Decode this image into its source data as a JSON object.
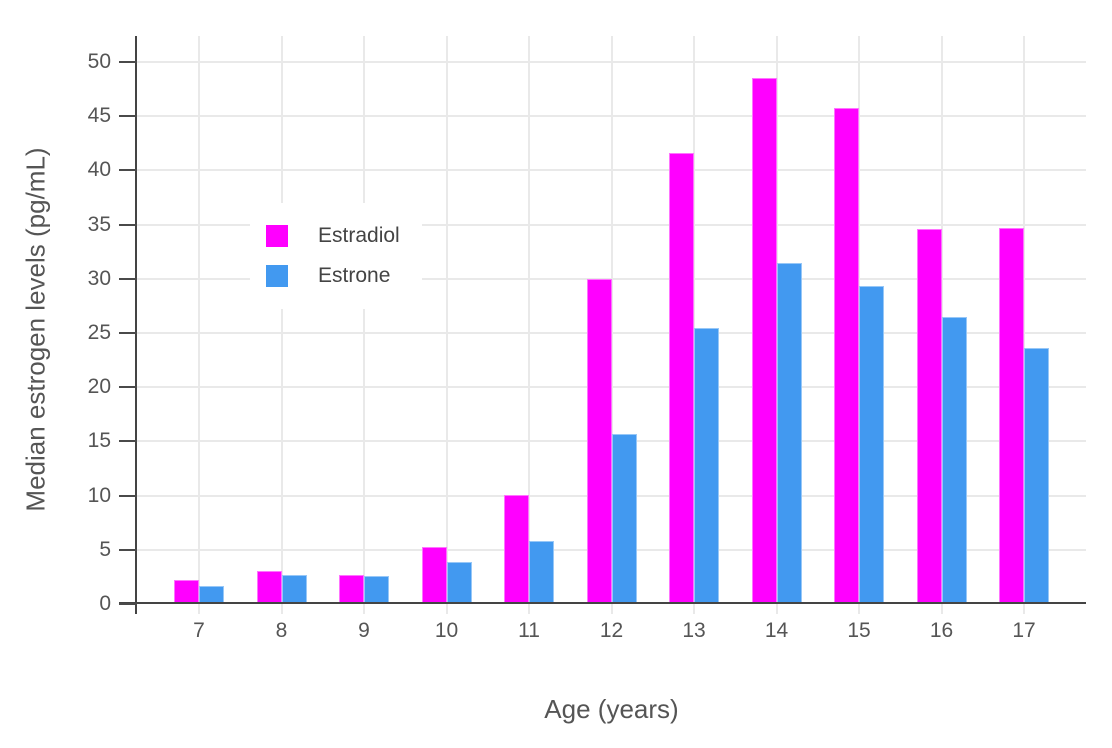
{
  "chart_data": {
    "type": "bar",
    "title": "",
    "xlabel": "Age (years)",
    "ylabel": "Median estrogen levels (pg/mL)",
    "categories": [
      "7",
      "8",
      "9",
      "10",
      "11",
      "12",
      "13",
      "14",
      "15",
      "16",
      "17"
    ],
    "series": [
      {
        "name": "Estradiol",
        "color": "#FF00FF",
        "values": [
          2.2,
          3.0,
          2.7,
          5.3,
          10.1,
          30.0,
          41.6,
          48.5,
          45.8,
          34.6,
          34.7
        ]
      },
      {
        "name": "Estrone",
        "color": "#4299F0",
        "values": [
          1.7,
          2.7,
          2.6,
          3.9,
          5.8,
          15.7,
          25.5,
          31.5,
          29.3,
          26.5,
          23.6
        ]
      }
    ],
    "ylim": [
      0,
      52.4
    ],
    "yticks": [
      0,
      5,
      10,
      15,
      20,
      25,
      30,
      35,
      40,
      45,
      50
    ],
    "grid": true,
    "legend_position": "inside-top-left",
    "colors": {
      "axis_line": "#444444",
      "grid_line": "#e9e9e9",
      "tick_text": "#555555",
      "legend_text": "#444444",
      "background": "#ffffff"
    }
  }
}
